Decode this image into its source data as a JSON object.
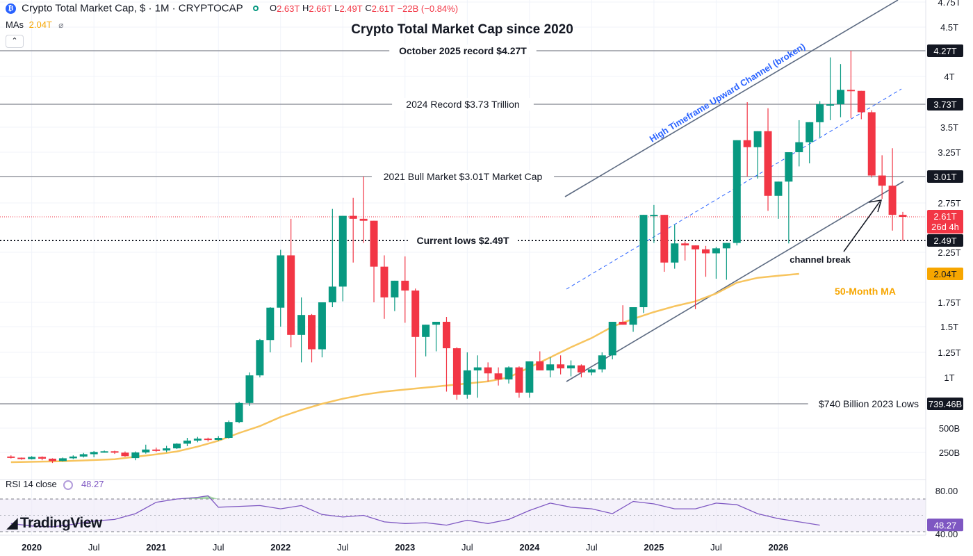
{
  "header": {
    "symbol_title": "Crypto Total Market Cap, $ · 1M · CRYPTOCAP",
    "open_label": "O",
    "open": "2.63T",
    "high_label": "H",
    "high": "2.66T",
    "low_label": "L",
    "low": "2.49T",
    "close_label": "C",
    "close": "2.61T",
    "change": "−22B (−0.84%)",
    "mas_label": "MAs",
    "mas_value": "2.04T",
    "collapse_glyph": "⌃"
  },
  "chart_data": {
    "type": "candlestick",
    "title": "Crypto Total Market Cap since 2020",
    "interval": "1M",
    "unit": "USD",
    "y_ticks": [
      {
        "v": 4750,
        "label": "4.75T"
      },
      {
        "v": 4500,
        "label": "4.5T"
      },
      {
        "v": 4000,
        "label": "4T"
      },
      {
        "v": 3500,
        "label": "3.5T"
      },
      {
        "v": 3250,
        "label": "3.25T"
      },
      {
        "v": 2750,
        "label": "2.75T"
      },
      {
        "v": 2250,
        "label": "2.25T"
      },
      {
        "v": 1750,
        "label": "1.75T"
      },
      {
        "v": 1500,
        "label": "1.5T"
      },
      {
        "v": 1250,
        "label": "1.25T"
      },
      {
        "v": 1000,
        "label": "1T"
      },
      {
        "v": 500,
        "label": "500B"
      },
      {
        "v": 250,
        "label": "250B"
      }
    ],
    "x_ticks": [
      {
        "i": 2,
        "label": "2020",
        "bold": true
      },
      {
        "i": 8,
        "label": "Jul",
        "bold": false
      },
      {
        "i": 14,
        "label": "2021",
        "bold": true
      },
      {
        "i": 20,
        "label": "Jul",
        "bold": false
      },
      {
        "i": 26,
        "label": "2022",
        "bold": true
      },
      {
        "i": 32,
        "label": "Jul",
        "bold": false
      },
      {
        "i": 38,
        "label": "2023",
        "bold": true
      },
      {
        "i": 44,
        "label": "Jul",
        "bold": false
      },
      {
        "i": 50,
        "label": "2024",
        "bold": true
      },
      {
        "i": 56,
        "label": "Jul",
        "bold": false
      },
      {
        "i": 62,
        "label": "2025",
        "bold": true
      },
      {
        "i": 68,
        "label": "Jul",
        "bold": false
      },
      {
        "i": 74,
        "label": "2026",
        "bold": true
      }
    ],
    "candles_billions": [
      [
        208,
        220,
        188,
        196
      ],
      [
        196,
        198,
        175,
        182
      ],
      [
        182,
        212,
        178,
        204
      ],
      [
        204,
        210,
        170,
        186
      ],
      [
        186,
        190,
        142,
        162
      ],
      [
        162,
        198,
        158,
        190
      ],
      [
        190,
        220,
        182,
        208
      ],
      [
        208,
        245,
        198,
        232
      ],
      [
        232,
        265,
        200,
        255
      ],
      [
        255,
        270,
        248,
        262
      ],
      [
        262,
        268,
        235,
        248
      ],
      [
        248,
        260,
        205,
        212
      ],
      [
        192,
        260,
        170,
        250
      ],
      [
        250,
        330,
        238,
        280
      ],
      [
        280,
        300,
        255,
        270
      ],
      [
        270,
        318,
        252,
        292
      ],
      [
        292,
        345,
        285,
        340
      ],
      [
        340,
        400,
        315,
        372
      ],
      [
        372,
        410,
        355,
        392
      ],
      [
        392,
        402,
        362,
        378
      ],
      [
        378,
        418,
        370,
        400
      ],
      [
        400,
        575,
        392,
        560
      ],
      [
        560,
        760,
        548,
        748
      ],
      [
        748,
        1050,
        720,
        1020
      ],
      [
        1020,
        1380,
        1000,
        1370
      ],
      [
        1370,
        1700,
        1250,
        1695
      ],
      [
        1695,
        2300,
        1500,
        2220
      ],
      [
        2220,
        2600,
        1300,
        1420
      ],
      [
        1420,
        1800,
        1150,
        1620
      ],
      [
        1620,
        1630,
        1150,
        1280
      ],
      [
        1280,
        1700,
        1200,
        1750
      ],
      [
        1750,
        2690,
        1700,
        1910
      ],
      [
        1910,
        2180,
        1760,
        2620
      ],
      [
        2620,
        2800,
        2150,
        2600
      ],
      [
        2600,
        3010,
        2440,
        2590
      ],
      [
        2590,
        2560,
        1750,
        2110
      ],
      [
        2110,
        2220,
        1580,
        1800
      ],
      [
        1800,
        1900,
        1660,
        1970
      ],
      [
        1970,
        2210,
        1540,
        1870
      ],
      [
        1870,
        1890,
        1000,
        1400
      ],
      [
        1400,
        1450,
        1210,
        1520
      ],
      [
        1520,
        1320,
        1260,
        1550
      ],
      [
        1550,
        1600,
        860,
        1290
      ],
      [
        1290,
        1300,
        780,
        830
      ],
      [
        830,
        1250,
        790,
        1070
      ],
      [
        1070,
        1220,
        800,
        1100
      ],
      [
        1100,
        1150,
        960,
        1040
      ],
      [
        1040,
        1100,
        920,
        980
      ],
      [
        980,
        1110,
        940,
        1100
      ],
      [
        1100,
        1110,
        800,
        850
      ],
      [
        850,
        1140,
        800,
        1160
      ],
      [
        1160,
        1260,
        1090,
        1070
      ],
      [
        1070,
        1200,
        1000,
        1130
      ],
      [
        1130,
        1220,
        1030,
        1090
      ],
      [
        1090,
        1170,
        1010,
        1120
      ],
      [
        1120,
        1130,
        1000,
        1050
      ],
      [
        1050,
        1090,
        1020,
        1080
      ],
      [
        1080,
        1250,
        1050,
        1220
      ],
      [
        1220,
        1420,
        1180,
        1550
      ],
      [
        1550,
        1720,
        1540,
        1520
      ],
      [
        1520,
        1580,
        1450,
        1700
      ],
      [
        1700,
        2280,
        1640,
        2630
      ],
      [
        2630,
        2730,
        2440,
        2630
      ],
      [
        2630,
        2630,
        2060,
        2150
      ],
      [
        2150,
        2570,
        2090,
        2430
      ],
      [
        2430,
        2470,
        2170,
        2390
      ],
      [
        2390,
        2390,
        1680,
        2310
      ],
      [
        2310,
        2380,
        2010,
        2240
      ],
      [
        2240,
        2360,
        1990,
        2330
      ],
      [
        2330,
        2400,
        1980,
        2440
      ],
      [
        2440,
        3280,
        2390,
        3370
      ],
      [
        3370,
        3750,
        3010,
        3300
      ],
      [
        3300,
        3430,
        2990,
        3460
      ],
      [
        3460,
        3690,
        2670,
        2820
      ],
      [
        2820,
        2820,
        2600,
        2960
      ],
      [
        2960,
        2990,
        2430,
        3250
      ],
      [
        3250,
        3570,
        3110,
        3350
      ],
      [
        3350,
        3440,
        3140,
        3550
      ],
      [
        3550,
        3760,
        3400,
        3730
      ],
      [
        3730,
        4200,
        3570,
        3730
      ],
      [
        3730,
        4130,
        3600,
        3870
      ],
      [
        3870,
        4270,
        3590,
        3860
      ],
      [
        3860,
        3860,
        3580,
        3650
      ],
      [
        3650,
        3670,
        3000,
        3020
      ],
      [
        3020,
        3220,
        2790,
        2920
      ],
      [
        2920,
        3290,
        2540,
        2630
      ],
      [
        2630,
        2660,
        2490,
        2610
      ]
    ],
    "ma50": [
      [
        0,
        150
      ],
      [
        5,
        160
      ],
      [
        10,
        180
      ],
      [
        14,
        230
      ],
      [
        16,
        260
      ],
      [
        18,
        310
      ],
      [
        20,
        370
      ],
      [
        22,
        450
      ],
      [
        24,
        520
      ],
      [
        26,
        610
      ],
      [
        28,
        680
      ],
      [
        30,
        740
      ],
      [
        32,
        790
      ],
      [
        34,
        830
      ],
      [
        36,
        860
      ],
      [
        38,
        880
      ],
      [
        40,
        900
      ],
      [
        42,
        920
      ],
      [
        44,
        940
      ],
      [
        46,
        960
      ],
      [
        48,
        1000
      ],
      [
        50,
        1100
      ],
      [
        52,
        1200
      ],
      [
        54,
        1300
      ],
      [
        56,
        1390
      ],
      [
        58,
        1500
      ],
      [
        60,
        1580
      ],
      [
        62,
        1650
      ],
      [
        64,
        1710
      ],
      [
        66,
        1760
      ],
      [
        68,
        1840
      ],
      [
        70,
        1950
      ],
      [
        72,
        2000
      ],
      [
        74,
        2020
      ],
      [
        76,
        2040
      ]
    ],
    "rsi": {
      "label": "RSI 14 close",
      "value": "48.27",
      "upper": 80,
      "lower": 40,
      "upper_label": "80.00",
      "lower_label": "40.00",
      "points": [
        [
          0,
          50
        ],
        [
          2,
          47
        ],
        [
          4,
          46
        ],
        [
          6,
          49
        ],
        [
          8,
          53
        ],
        [
          10,
          55
        ],
        [
          12,
          62
        ],
        [
          14,
          76
        ],
        [
          16,
          80
        ],
        [
          18,
          82
        ],
        [
          19,
          84
        ],
        [
          20,
          70
        ],
        [
          22,
          71
        ],
        [
          24,
          72
        ],
        [
          26,
          68
        ],
        [
          28,
          72
        ],
        [
          30,
          61
        ],
        [
          32,
          58
        ],
        [
          34,
          60
        ],
        [
          36,
          52
        ],
        [
          38,
          50
        ],
        [
          40,
          51
        ],
        [
          42,
          48
        ],
        [
          44,
          54
        ],
        [
          46,
          50
        ],
        [
          48,
          55
        ],
        [
          50,
          66
        ],
        [
          52,
          75
        ],
        [
          54,
          70
        ],
        [
          56,
          68
        ],
        [
          58,
          62
        ],
        [
          60,
          77
        ],
        [
          62,
          74
        ],
        [
          64,
          68
        ],
        [
          66,
          68
        ],
        [
          68,
          75
        ],
        [
          70,
          73
        ],
        [
          72,
          62
        ],
        [
          74,
          56
        ],
        [
          76,
          52
        ],
        [
          78,
          48
        ]
      ]
    },
    "levels": [
      {
        "v": 4270,
        "text": "October 2025 record $4.27T",
        "color": "#131722",
        "bold": true,
        "badge": "4.27T",
        "badge_bg": "#131722",
        "badge_fg": "#ffffff"
      },
      {
        "v": 3730,
        "text": "2024 Record $3.73 Trillion",
        "color": "#131722",
        "bold": false,
        "badge": "3.73T",
        "badge_bg": "#131722",
        "badge_fg": "#ffffff"
      },
      {
        "v": 3010,
        "text": "2021 Bull Market $3.01T Market Cap",
        "color": "#131722",
        "bold": false,
        "badge": "3.01T",
        "badge_bg": "#131722",
        "badge_fg": "#ffffff"
      },
      {
        "v": 2490,
        "text": "Current lows $2.49T",
        "color": "#131722",
        "bold": true,
        "badge": "2.49T",
        "badge_bg": "#131722",
        "badge_fg": "#ffffff"
      },
      {
        "v": 740,
        "text": "$740 Billion 2023 Lows",
        "color": "#131722",
        "bold": false,
        "badge": "739.46B",
        "badge_bg": "#131722",
        "badge_fg": "#ffffff"
      }
    ],
    "price_badge": {
      "v": 2610,
      "text": "2.61T",
      "countdown": "26d 4h",
      "bg": "#f23645"
    },
    "ma_badge": {
      "v": 2040,
      "text": "2.04T",
      "bg": "#f7a600"
    },
    "annotations": {
      "channel": "High Timeframe Upward Channel (broken)",
      "channel_break": "channel break",
      "ma_label": "50-Month MA"
    },
    "colors": {
      "up": "#089981",
      "down": "#f23645",
      "ma": "#f7c45e",
      "rsi": "#7e57c2",
      "channel": "#5d6b82",
      "blue": "#2962ff"
    }
  },
  "branding": {
    "text": "TradingView",
    "mark": "◢"
  }
}
